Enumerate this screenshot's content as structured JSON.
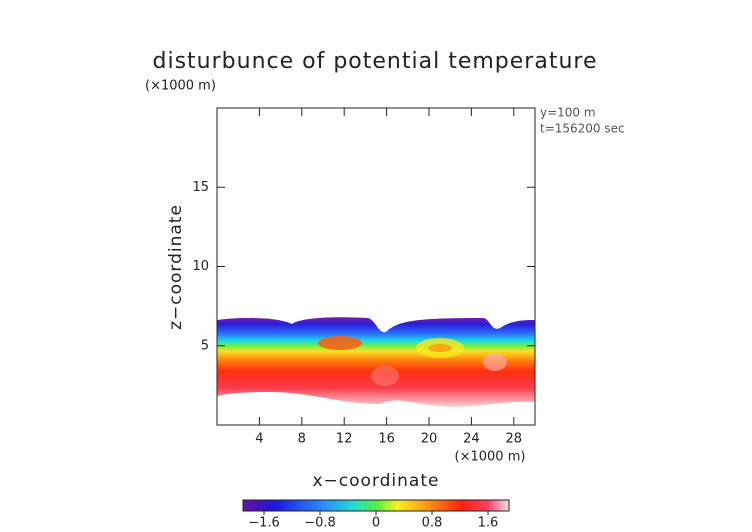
{
  "chart_data": {
    "type": "contour",
    "title": "disturbunce of potential temperature",
    "y_unit": "(×1000 m)",
    "x_unit": "(×1000 m)",
    "xlabel": "x−coordinate",
    "ylabel": "z−coordinate",
    "annotations": [
      "y=100 m",
      "t=156200 sec"
    ],
    "xlim": [
      0,
      30
    ],
    "xticks": [
      4,
      8,
      12,
      16,
      20,
      24,
      28
    ],
    "ylim": [
      0,
      20
    ],
    "yticks": [
      5,
      10,
      15
    ],
    "clim": [
      -1.9,
      1.9
    ],
    "cticks": [
      {
        "value": -1.6,
        "label": "−1.6"
      },
      {
        "value": -0.8,
        "label": "−0.8"
      },
      0,
      0.8,
      1.6
    ]
  }
}
